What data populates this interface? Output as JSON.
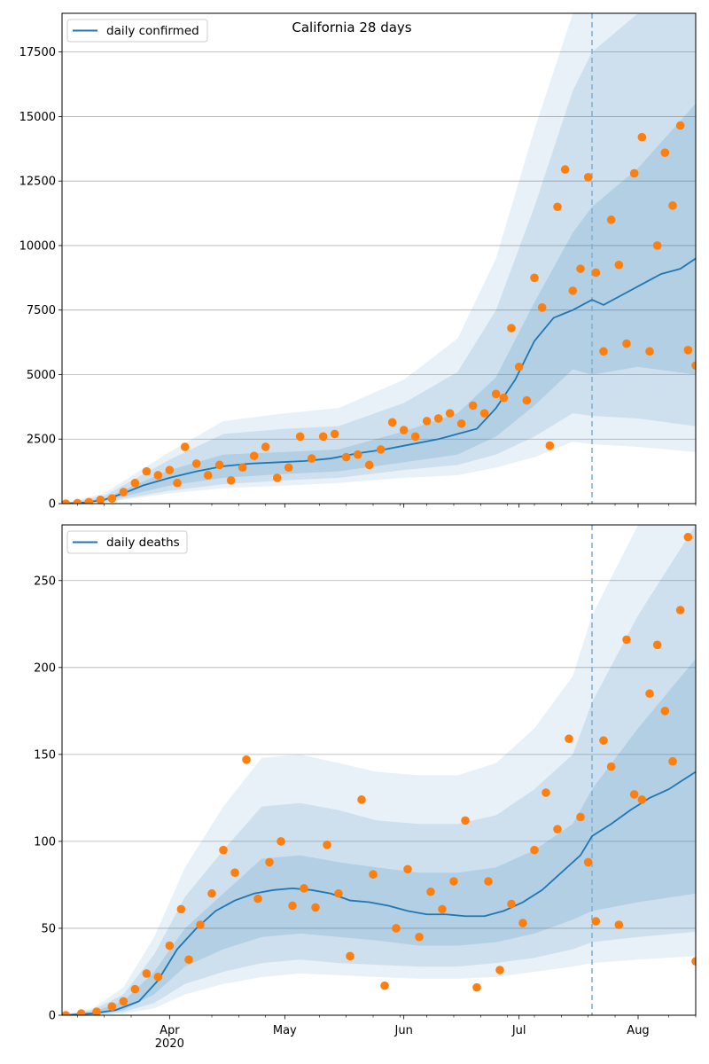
{
  "colors": {
    "band": "#1f77b4",
    "line": "#1f77b4",
    "points": "#ff7f0e",
    "grid": "#b0b0b0",
    "forecast_line": "#7fb2d6"
  },
  "chart_data": [
    {
      "type": "line",
      "title": "California 28 days",
      "legend": [
        "daily confirmed"
      ],
      "legend_position": "top-left",
      "grid": "horizontal",
      "xlabel": "",
      "ylabel": "",
      "x_range": [
        "2020-03-04",
        "2020-08-16"
      ],
      "ylim": [
        0,
        19000
      ],
      "y_ticks": [
        "0",
        "2500",
        "5000",
        "7500",
        "10000",
        "12500",
        "15000",
        "17500"
      ],
      "x_ticks": [],
      "forecast_start": "2020-07-20",
      "series": [
        {
          "name": "daily confirmed",
          "x": [
            "2020-03-04",
            "2020-03-10",
            "2020-03-15",
            "2020-03-20",
            "2020-03-25",
            "2020-04-01",
            "2020-04-08",
            "2020-04-15",
            "2020-04-22",
            "2020-04-29",
            "2020-05-06",
            "2020-05-13",
            "2020-05-20",
            "2020-05-27",
            "2020-06-03",
            "2020-06-10",
            "2020-06-15",
            "2020-06-20",
            "2020-06-25",
            "2020-06-30",
            "2020-07-05",
            "2020-07-10",
            "2020-07-15",
            "2020-07-20",
            "2020-07-23",
            "2020-07-28",
            "2020-08-02",
            "2020-08-07",
            "2020-08-12",
            "2020-08-16"
          ],
          "values": [
            0,
            40,
            150,
            400,
            700,
            1000,
            1250,
            1450,
            1550,
            1600,
            1650,
            1750,
            1950,
            2100,
            2300,
            2500,
            2700,
            2900,
            3700,
            4800,
            6300,
            7200,
            7500,
            7900,
            7700,
            8100,
            8500,
            8900,
            9100,
            9500
          ]
        }
      ],
      "bands": [
        {
          "name": "80%",
          "x": [
            "2020-03-04",
            "2020-03-15",
            "2020-04-01",
            "2020-04-15",
            "2020-05-01",
            "2020-05-15",
            "2020-06-01",
            "2020-06-15",
            "2020-06-25",
            "2020-07-05",
            "2020-07-15",
            "2020-07-20",
            "2020-08-01",
            "2020-08-16"
          ],
          "lower": [
            0,
            100,
            700,
            1000,
            1150,
            1250,
            1600,
            1900,
            2600,
            3800,
            5200,
            5000,
            5300,
            5000
          ],
          "upper": [
            0,
            200,
            1300,
            1900,
            2000,
            2100,
            2800,
            3500,
            4900,
            7800,
            10500,
            11500,
            13000,
            15500
          ]
        },
        {
          "name": "95%",
          "x": [
            "2020-03-04",
            "2020-03-15",
            "2020-04-01",
            "2020-04-15",
            "2020-05-01",
            "2020-05-15",
            "2020-06-01",
            "2020-06-15",
            "2020-06-25",
            "2020-07-05",
            "2020-07-15",
            "2020-07-20",
            "2020-08-01",
            "2020-08-16"
          ],
          "lower": [
            0,
            60,
            500,
            750,
            900,
            1000,
            1300,
            1500,
            1900,
            2600,
            3500,
            3400,
            3300,
            3000
          ],
          "upper": [
            0,
            300,
            1700,
            2700,
            2900,
            3000,
            3900,
            5100,
            7500,
            11500,
            16000,
            17500,
            19000,
            19000
          ]
        },
        {
          "name": "99%",
          "x": [
            "2020-03-04",
            "2020-03-15",
            "2020-04-01",
            "2020-04-15",
            "2020-05-01",
            "2020-05-15",
            "2020-06-01",
            "2020-06-15",
            "2020-06-25",
            "2020-07-05",
            "2020-07-15",
            "2020-07-20",
            "2020-08-01",
            "2020-08-16"
          ],
          "lower": [
            0,
            40,
            400,
            600,
            700,
            800,
            1000,
            1100,
            1400,
            1800,
            2400,
            2300,
            2200,
            2000
          ],
          "upper": [
            0,
            400,
            2000,
            3200,
            3500,
            3700,
            4800,
            6400,
            9500,
            14500,
            19000,
            19000,
            19000,
            19000
          ]
        }
      ],
      "observed": {
        "x": [
          "2020-03-05",
          "2020-03-08",
          "2020-03-11",
          "2020-03-14",
          "2020-03-17",
          "2020-03-20",
          "2020-03-23",
          "2020-03-26",
          "2020-03-29",
          "2020-04-01",
          "2020-04-03",
          "2020-04-05",
          "2020-04-08",
          "2020-04-11",
          "2020-04-14",
          "2020-04-17",
          "2020-04-20",
          "2020-04-23",
          "2020-04-26",
          "2020-04-29",
          "2020-05-02",
          "2020-05-05",
          "2020-05-08",
          "2020-05-11",
          "2020-05-14",
          "2020-05-17",
          "2020-05-20",
          "2020-05-23",
          "2020-05-26",
          "2020-05-29",
          "2020-06-01",
          "2020-06-04",
          "2020-06-07",
          "2020-06-10",
          "2020-06-13",
          "2020-06-16",
          "2020-06-19",
          "2020-06-22",
          "2020-06-25",
          "2020-06-27",
          "2020-06-29",
          "2020-07-01",
          "2020-07-03",
          "2020-07-05",
          "2020-07-07",
          "2020-07-09",
          "2020-07-11",
          "2020-07-13",
          "2020-07-15",
          "2020-07-17",
          "2020-07-19",
          "2020-07-21",
          "2020-07-23",
          "2020-07-25",
          "2020-07-27",
          "2020-07-29",
          "2020-07-31",
          "2020-08-02",
          "2020-08-04",
          "2020-08-06",
          "2020-08-08",
          "2020-08-10",
          "2020-08-12",
          "2020-08-14",
          "2020-08-16"
        ],
        "values": [
          0,
          20,
          60,
          150,
          200,
          450,
          800,
          1250,
          1100,
          1300,
          800,
          2200,
          1550,
          1100,
          1500,
          900,
          1400,
          1850,
          2200,
          1000,
          1400,
          2600,
          1750,
          2600,
          2700,
          1800,
          1900,
          1500,
          2100,
          3150,
          2850,
          2600,
          3200,
          3300,
          3500,
          3100,
          3800,
          3500,
          4250,
          4100,
          6800,
          5300,
          4000,
          8750,
          7600,
          2250,
          11500,
          12950,
          8250,
          9100,
          12650,
          8950,
          5900,
          11000,
          9250,
          6200,
          12800,
          14200,
          5900,
          10000,
          13600,
          11550,
          14650,
          5950,
          5350
        ]
      }
    },
    {
      "type": "line",
      "title": "",
      "legend": [
        "daily deaths"
      ],
      "legend_position": "top-left",
      "grid": "horizontal",
      "xlabel": "",
      "ylabel": "",
      "x_range": [
        "2020-03-04",
        "2020-08-16"
      ],
      "ylim": [
        0,
        282
      ],
      "y_ticks": [
        "0",
        "50",
        "100",
        "150",
        "200",
        "250"
      ],
      "x_ticks": [
        {
          "date": "2020-04-01",
          "label": "Apr",
          "sublabel": "2020"
        },
        {
          "date": "2020-05-01",
          "label": "May",
          "sublabel": ""
        },
        {
          "date": "2020-06-01",
          "label": "Jun",
          "sublabel": ""
        },
        {
          "date": "2020-07-01",
          "label": "Jul",
          "sublabel": ""
        },
        {
          "date": "2020-08-01",
          "label": "Aug",
          "sublabel": ""
        }
      ],
      "forecast_start": "2020-07-20",
      "series": [
        {
          "name": "daily deaths",
          "x": [
            "2020-03-04",
            "2020-03-12",
            "2020-03-18",
            "2020-03-24",
            "2020-03-29",
            "2020-04-03",
            "2020-04-08",
            "2020-04-13",
            "2020-04-18",
            "2020-04-23",
            "2020-04-28",
            "2020-05-03",
            "2020-05-08",
            "2020-05-13",
            "2020-05-18",
            "2020-05-23",
            "2020-05-28",
            "2020-06-02",
            "2020-06-07",
            "2020-06-12",
            "2020-06-17",
            "2020-06-22",
            "2020-06-27",
            "2020-07-02",
            "2020-07-07",
            "2020-07-12",
            "2020-07-17",
            "2020-07-20",
            "2020-07-25",
            "2020-07-30",
            "2020-08-04",
            "2020-08-09",
            "2020-08-16"
          ],
          "values": [
            0,
            1,
            3,
            8,
            20,
            38,
            50,
            60,
            66,
            70,
            72,
            73,
            72,
            70,
            66,
            65,
            63,
            60,
            58,
            58,
            57,
            57,
            60,
            65,
            72,
            82,
            92,
            103,
            110,
            118,
            125,
            130,
            140
          ]
        }
      ],
      "bands": [
        {
          "name": "80%",
          "x": [
            "2020-03-04",
            "2020-03-12",
            "2020-03-20",
            "2020-03-28",
            "2020-04-05",
            "2020-04-15",
            "2020-04-25",
            "2020-05-05",
            "2020-05-15",
            "2020-05-25",
            "2020-06-05",
            "2020-06-15",
            "2020-06-25",
            "2020-07-05",
            "2020-07-15",
            "2020-07-20",
            "2020-08-01",
            "2020-08-16"
          ],
          "lower": [
            0,
            0,
            3,
            12,
            28,
            38,
            45,
            47,
            45,
            43,
            40,
            40,
            42,
            47,
            55,
            60,
            65,
            70
          ],
          "upper": [
            0,
            2,
            8,
            25,
            50,
            70,
            90,
            92,
            88,
            85,
            82,
            82,
            85,
            95,
            110,
            130,
            165,
            205
          ]
        },
        {
          "name": "95%",
          "x": [
            "2020-03-04",
            "2020-03-12",
            "2020-03-20",
            "2020-03-28",
            "2020-04-05",
            "2020-04-15",
            "2020-04-25",
            "2020-05-05",
            "2020-05-15",
            "2020-05-25",
            "2020-06-05",
            "2020-06-15",
            "2020-06-25",
            "2020-07-05",
            "2020-07-15",
            "2020-07-20",
            "2020-08-01",
            "2020-08-16"
          ],
          "lower": [
            0,
            0,
            2,
            7,
            18,
            25,
            30,
            32,
            30,
            29,
            28,
            28,
            30,
            33,
            38,
            42,
            45,
            48
          ],
          "upper": [
            0,
            3,
            12,
            35,
            68,
            95,
            120,
            122,
            118,
            112,
            110,
            110,
            115,
            130,
            150,
            180,
            230,
            282
          ]
        },
        {
          "name": "99%",
          "x": [
            "2020-03-04",
            "2020-03-12",
            "2020-03-20",
            "2020-03-28",
            "2020-04-05",
            "2020-04-15",
            "2020-04-25",
            "2020-05-05",
            "2020-05-15",
            "2020-05-25",
            "2020-06-05",
            "2020-06-15",
            "2020-06-25",
            "2020-07-05",
            "2020-07-15",
            "2020-07-20",
            "2020-08-01",
            "2020-08-16"
          ],
          "lower": [
            0,
            0,
            1,
            4,
            12,
            18,
            22,
            24,
            23,
            22,
            21,
            21,
            22,
            25,
            28,
            30,
            32,
            34
          ],
          "upper": [
            0,
            4,
            16,
            45,
            85,
            120,
            148,
            150,
            145,
            140,
            138,
            138,
            145,
            165,
            195,
            230,
            282,
            282
          ]
        }
      ],
      "observed": {
        "x": [
          "2020-03-05",
          "2020-03-09",
          "2020-03-13",
          "2020-03-17",
          "2020-03-20",
          "2020-03-23",
          "2020-03-26",
          "2020-03-29",
          "2020-04-01",
          "2020-04-04",
          "2020-04-06",
          "2020-04-09",
          "2020-04-12",
          "2020-04-15",
          "2020-04-18",
          "2020-04-21",
          "2020-04-24",
          "2020-04-27",
          "2020-04-30",
          "2020-05-03",
          "2020-05-06",
          "2020-05-09",
          "2020-05-12",
          "2020-05-15",
          "2020-05-18",
          "2020-05-21",
          "2020-05-24",
          "2020-05-27",
          "2020-05-30",
          "2020-06-02",
          "2020-06-05",
          "2020-06-08",
          "2020-06-11",
          "2020-06-14",
          "2020-06-17",
          "2020-06-20",
          "2020-06-23",
          "2020-06-26",
          "2020-06-29",
          "2020-07-02",
          "2020-07-05",
          "2020-07-08",
          "2020-07-11",
          "2020-07-14",
          "2020-07-17",
          "2020-07-19",
          "2020-07-21",
          "2020-07-23",
          "2020-07-25",
          "2020-07-27",
          "2020-07-29",
          "2020-07-31",
          "2020-08-02",
          "2020-08-04",
          "2020-08-06",
          "2020-08-08",
          "2020-08-10",
          "2020-08-12",
          "2020-08-14",
          "2020-08-16"
        ],
        "values": [
          0,
          1,
          2,
          5,
          8,
          15,
          24,
          22,
          40,
          61,
          32,
          52,
          70,
          95,
          82,
          147,
          67,
          88,
          100,
          63,
          73,
          62,
          98,
          70,
          34,
          124,
          81,
          17,
          50,
          84,
          45,
          71,
          61,
          77,
          112,
          16,
          77,
          26,
          64,
          53,
          95,
          128,
          107,
          159,
          114,
          88,
          54,
          158,
          143,
          52,
          216,
          127,
          124,
          185,
          213,
          175,
          146,
          233,
          275,
          31
        ]
      }
    }
  ]
}
